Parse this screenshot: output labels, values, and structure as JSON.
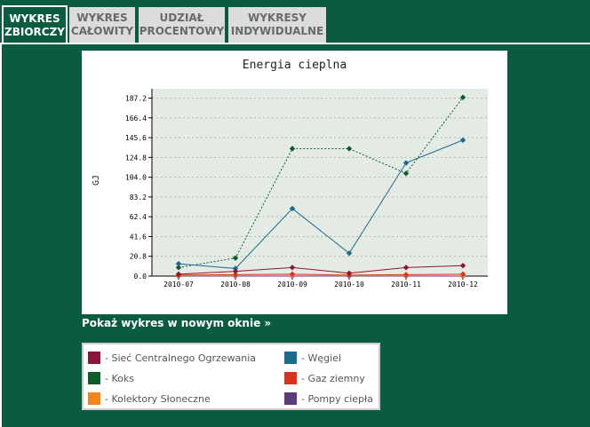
{
  "tabs": [
    {
      "line1": "WYKRES",
      "line2": "ZBIORCZY",
      "active": true
    },
    {
      "line1": "WYKRES",
      "line2": "CAŁOWITY",
      "active": false
    },
    {
      "line1": "UDZIAŁ",
      "line2": "PROCENTOWY",
      "active": false
    },
    {
      "line1": "WYKRESY",
      "line2": "INDYWIDUALNE",
      "active": false
    }
  ],
  "new_window_link": "Pokaż wykres w nowym oknie »",
  "legend": [
    {
      "label": "- Sieć Centralnego Ogrzewania",
      "color": "#8b1538"
    },
    {
      "label": "- Węgiel",
      "color": "#1a6b8c"
    },
    {
      "label": "- Koks",
      "color": "#0b5e2a"
    },
    {
      "label": "- Gaz ziemny",
      "color": "#d9341a"
    },
    {
      "label": "- Kolektory Słoneczne",
      "color": "#f0861c"
    },
    {
      "label": "- Pompy ciepła",
      "color": "#5a3c7a"
    }
  ],
  "chart_data": {
    "type": "line",
    "title": "Energia cieplna",
    "ylabel": "GJ",
    "categories": [
      "2010-07",
      "2010-08",
      "2010-09",
      "2010-10",
      "2010-11",
      "2010-12"
    ],
    "y_ticks": [
      "0.0",
      "20.8",
      "41.6",
      "62.4",
      "83.2",
      "104.0",
      "124.8",
      "145.6",
      "166.4",
      "187.2"
    ],
    "ylim": [
      0,
      197
    ],
    "grid": true,
    "series": [
      {
        "name": "Sieć Centralnego Ogrzewania",
        "color": "#8b1538",
        "style": "solid",
        "values": [
          2.0,
          5.0,
          9.0,
          3.0,
          9.0,
          11.0
        ]
      },
      {
        "name": "Węgiel",
        "color": "#1a6b8c",
        "style": "solid",
        "values": [
          13.0,
          8.0,
          71.0,
          24.0,
          119.0,
          143.0
        ]
      },
      {
        "name": "Koks",
        "color": "#0b5e2a",
        "style": "dotted",
        "values": [
          9.0,
          19.0,
          134.0,
          134.0,
          108.0,
          188.0
        ]
      },
      {
        "name": "Gaz ziemny",
        "color": "#d9341a",
        "style": "solid",
        "values": [
          1.0,
          1.5,
          2.0,
          1.0,
          1.5,
          2.0
        ]
      },
      {
        "name": "Kolektory Słoneczne",
        "color": "#f0861c",
        "style": "solid",
        "values": [
          0.5,
          0.5,
          0.5,
          0.5,
          0.5,
          0.5
        ]
      },
      {
        "name": "Pompy ciepła",
        "color": "#5a3c7a",
        "style": "solid",
        "values": [
          0.0,
          0.0,
          0.0,
          0.0,
          0.0,
          0.0
        ]
      }
    ]
  }
}
